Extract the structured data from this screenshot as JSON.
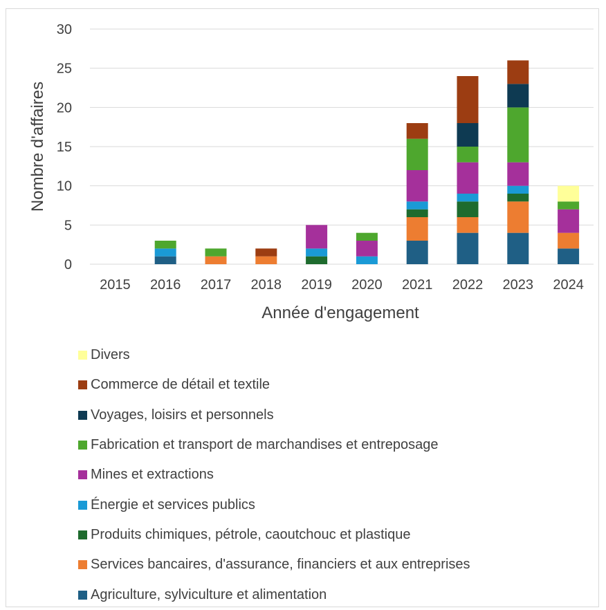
{
  "chart_data": {
    "type": "bar",
    "stacked": true,
    "xlabel": "Année d'engagement",
    "ylabel": "Nombre d'affaires",
    "ylim": [
      0,
      30
    ],
    "yticks": [
      0,
      5,
      10,
      15,
      20,
      25,
      30
    ],
    "grid": true,
    "legend_position": "bottom",
    "categories": [
      "2015",
      "2016",
      "2017",
      "2018",
      "2019",
      "2020",
      "2021",
      "2022",
      "2023",
      "2024"
    ],
    "series": [
      {
        "name": "Agriculture, sylviculture et alimentation",
        "color": "#1f5f85",
        "values": [
          0,
          1,
          0,
          0,
          0,
          0,
          3,
          4,
          4,
          2
        ]
      },
      {
        "name": "Services bancaires, d'assurance, financiers et aux entreprises",
        "color": "#ed7d31",
        "values": [
          0,
          0,
          1,
          1,
          0,
          0,
          3,
          2,
          4,
          2
        ]
      },
      {
        "name": "Produits chimiques, pétrole, caoutchouc et plastique",
        "color": "#1e6b2e",
        "values": [
          0,
          0,
          0,
          0,
          1,
          0,
          1,
          2,
          1,
          0
        ]
      },
      {
        "name": "Énergie et services publics",
        "color": "#1a9ad6",
        "values": [
          0,
          1,
          0,
          0,
          1,
          1,
          1,
          1,
          1,
          0
        ]
      },
      {
        "name": "Mines et extractions",
        "color": "#a5309b",
        "values": [
          0,
          0,
          0,
          0,
          3,
          2,
          4,
          4,
          3,
          3
        ]
      },
      {
        "name": "Fabrication et transport de marchandises et entreposage",
        "color": "#4ea72e",
        "values": [
          0,
          1,
          1,
          0,
          0,
          1,
          4,
          2,
          7,
          1
        ]
      },
      {
        "name": "Voyages, loisirs et personnels",
        "color": "#0e3a52",
        "values": [
          0,
          0,
          0,
          0,
          0,
          0,
          0,
          3,
          3,
          0
        ]
      },
      {
        "name": "Commerce de détail et textile",
        "color": "#9c3d12",
        "values": [
          0,
          0,
          0,
          1,
          0,
          0,
          2,
          6,
          3,
          0
        ]
      },
      {
        "name": "Divers",
        "color": "#ffff99",
        "values": [
          0,
          0,
          0,
          0,
          0,
          0,
          0,
          0,
          0,
          2
        ]
      }
    ]
  }
}
